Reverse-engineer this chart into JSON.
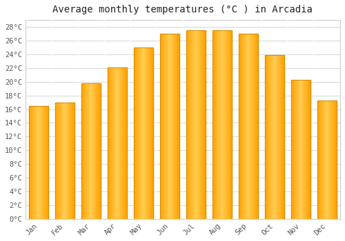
{
  "title": "Average monthly temperatures (°C ) in Arcadia",
  "months": [
    "Jan",
    "Feb",
    "Mar",
    "Apr",
    "May",
    "Jun",
    "Jul",
    "Aug",
    "Sep",
    "Oct",
    "Nov",
    "Dec"
  ],
  "temperatures": [
    16.5,
    17.0,
    19.8,
    22.1,
    25.0,
    27.0,
    27.5,
    27.5,
    27.0,
    23.9,
    20.3,
    17.3
  ],
  "bar_color_main": "#FFA500",
  "bar_color_light": "#FFD070",
  "bar_color_edge": "#CC8800",
  "background_color": "#FFFFFF",
  "plot_bg_color": "#FFFFFF",
  "grid_color": "#CCCCCC",
  "text_color": "#555555",
  "title_color": "#222222",
  "ylim": [
    0,
    29
  ],
  "ytick_step": 2,
  "title_fontsize": 10,
  "tick_fontsize": 7.5,
  "font_family": "monospace"
}
